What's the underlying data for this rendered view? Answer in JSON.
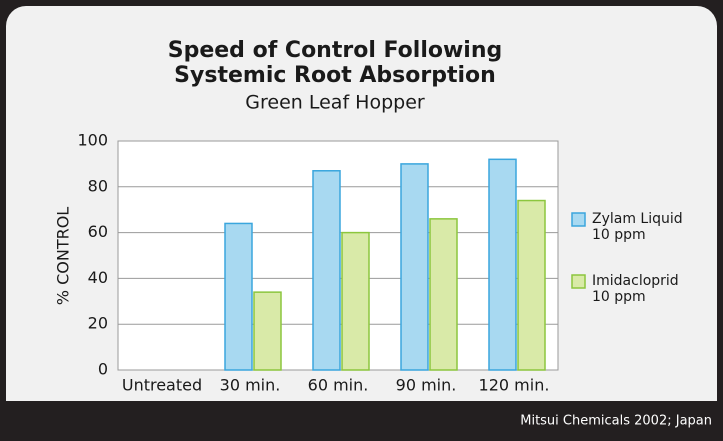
{
  "chart_data": {
    "type": "bar",
    "title": [
      "Speed of Control Following",
      "Systemic Root Absorption"
    ],
    "subtitle": "Green Leaf Hopper",
    "y_label": "% CONTROL",
    "categories": [
      "Untreated",
      "30 min.",
      "60 min.",
      "90 min.",
      "120 min."
    ],
    "series": [
      {
        "name": "Zylam Liquid\n10 ppm",
        "color": "#a8d9f1",
        "stroke": "#3aa6dd",
        "values": [
          0,
          64,
          87,
          90,
          92
        ]
      },
      {
        "name": "Imidacloprid\n10 ppm",
        "color": "#d9eaa8",
        "stroke": "#8cc63e",
        "values": [
          0,
          34,
          60,
          66,
          74
        ]
      }
    ],
    "ylim": [
      0,
      100
    ],
    "yticks": [
      0,
      20,
      40,
      60,
      80,
      100
    ],
    "grid": true,
    "source": "Mitsui Chemicals 2002; Japan"
  }
}
